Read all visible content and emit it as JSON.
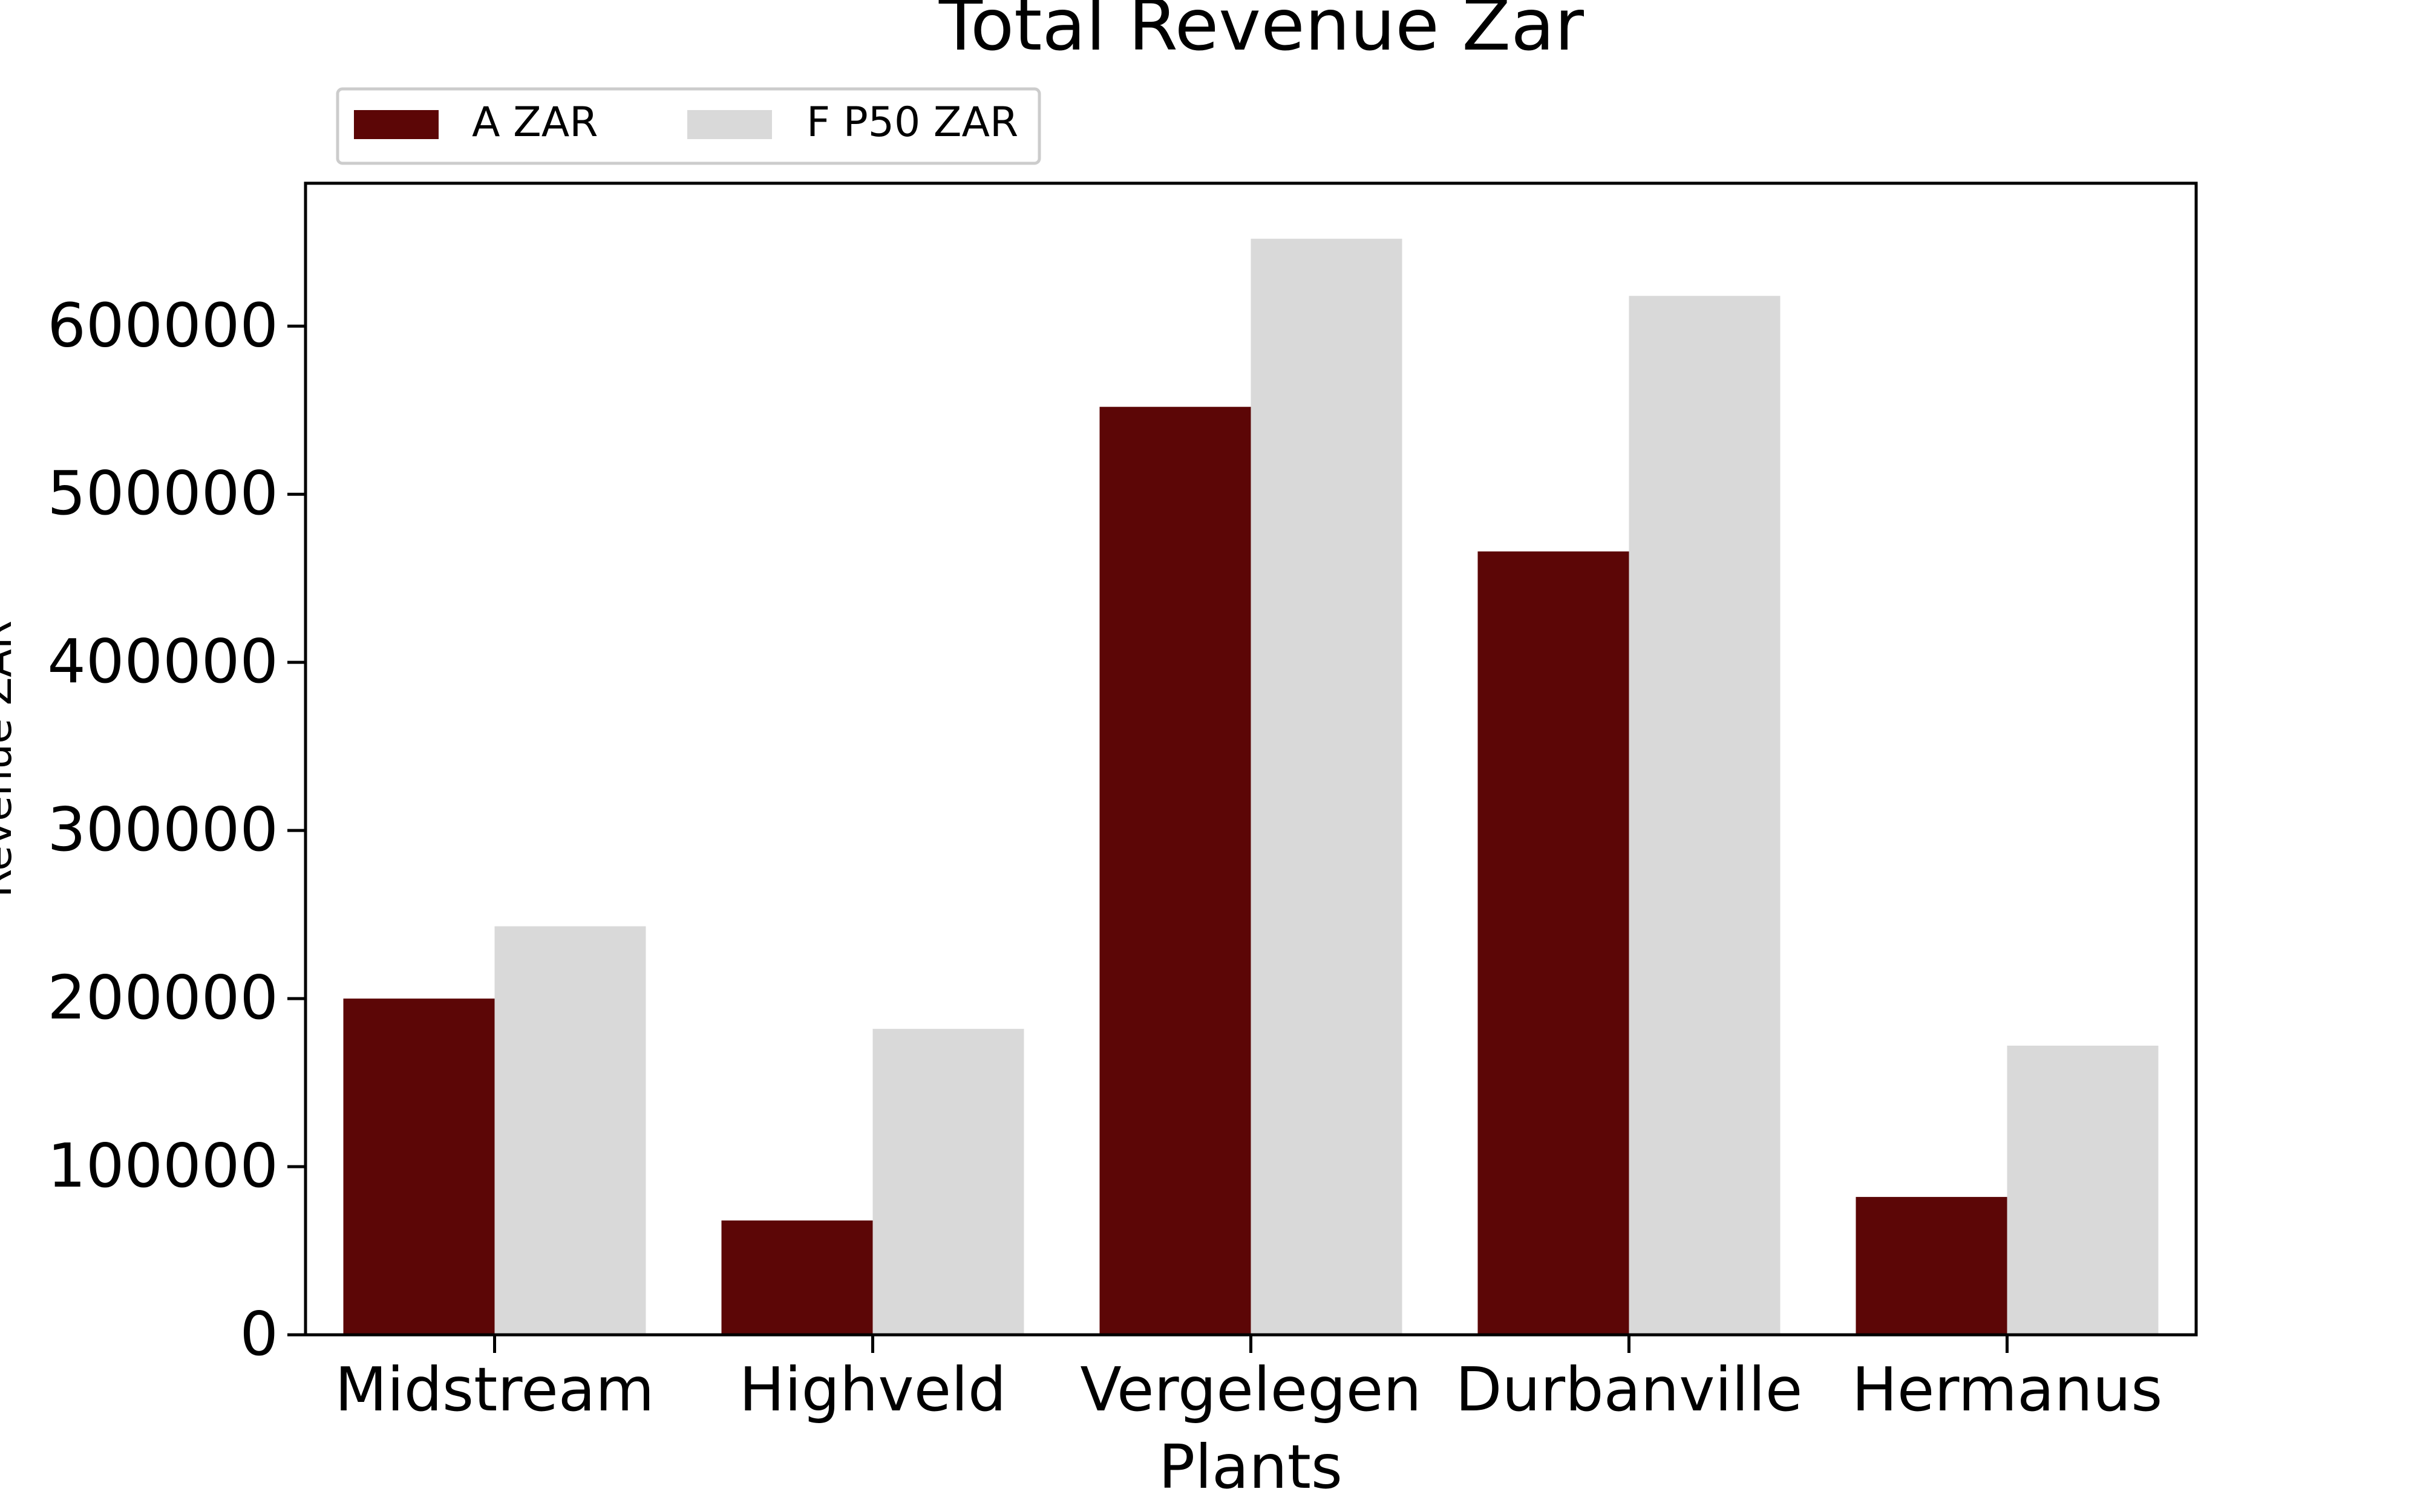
{
  "chart_data": {
    "type": "bar",
    "title": "Total Revenue Zar",
    "xlabel": "Plants",
    "ylabel": "Revenue ZAR",
    "categories": [
      "Midstream",
      "Highveld",
      "Vergelegen",
      "Durbanville",
      "Hermanus"
    ],
    "series": [
      {
        "name": "A ZAR",
        "color": "#5c0606",
        "values": [
          200000,
          68000,
          552000,
          466000,
          82000
        ]
      },
      {
        "name": "F P50 ZAR",
        "color": "#d9d9d9",
        "values": [
          243000,
          182000,
          652000,
          618000,
          172000
        ]
      }
    ],
    "ylim": [
      0,
      685000
    ],
    "yticks": [
      "0",
      "100000",
      "200000",
      "300000",
      "400000",
      "500000",
      "600000"
    ],
    "grid": false,
    "legend_position": "top-left"
  }
}
